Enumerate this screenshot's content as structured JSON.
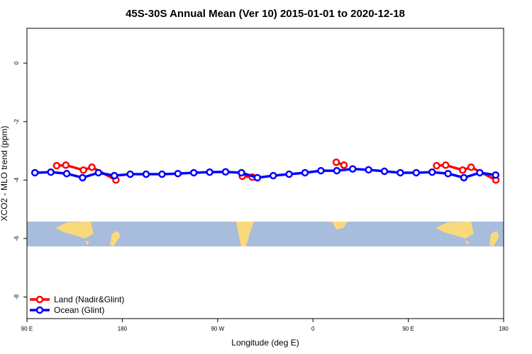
{
  "chart_data": {
    "type": "line",
    "title": "45S-30S Annual Mean (Ver 10)   2015-01-01 to 2020-12-18",
    "x_label": "Longitude (deg E)",
    "y_label": "XCO2 - MLO trend (ppm)",
    "xlim": [
      90,
      540
    ],
    "xticks": [
      {
        "value": 90,
        "label": "90 E"
      },
      180,
      {
        "value": 270,
        "label": "90 W"
      },
      {
        "value": 360,
        "label": "0"
      },
      {
        "value": 450,
        "label": "90 E"
      },
      {
        "value": 540,
        "label": "180"
      }
    ],
    "ylim": [
      -8.74,
      1.19
    ],
    "yticks": [
      0,
      -2,
      -4,
      -6,
      -8
    ],
    "legend": "bottom-left",
    "series": [
      {
        "name": "Land (Nadir&Glint)",
        "color": "#ff0000",
        "x": [
          118,
          126.7,
          143.3,
          151.3,
          174,
          null,
          293.3,
          302.7,
          null,
          382,
          389.3,
          null,
          476.7,
          485.3,
          501.3,
          509.3,
          532.7
        ],
        "values": [
          -3.51,
          -3.49,
          -3.66,
          -3.56,
          -4.0,
          null,
          -3.87,
          -3.9,
          null,
          -3.39,
          -3.49,
          null,
          -3.51,
          -3.49,
          -3.66,
          -3.56,
          -4.0
        ]
      },
      {
        "name": "Ocean (Glint)",
        "color": "#0000ff",
        "x": [
          97.5,
          112.5,
          127.5,
          142.5,
          157.5,
          172.5,
          187.5,
          202.5,
          217.5,
          232.5,
          247.5,
          262.5,
          277.5,
          292.5,
          307.5,
          322.5,
          337.5,
          352.5,
          367.5,
          382.5,
          397.5,
          412.5,
          427.5,
          442.5,
          457.5,
          472.5,
          487.5,
          502.5,
          517.5,
          532.5
        ],
        "values": [
          -3.75,
          -3.73,
          -3.78,
          -3.92,
          -3.75,
          -3.85,
          -3.8,
          -3.8,
          -3.8,
          -3.78,
          -3.75,
          -3.73,
          -3.72,
          -3.75,
          -3.92,
          -3.85,
          -3.8,
          -3.75,
          -3.68,
          -3.68,
          -3.62,
          -3.65,
          -3.7,
          -3.75,
          -3.75,
          -3.73,
          -3.78,
          -3.92,
          -3.75,
          -3.83
        ]
      }
    ]
  }
}
